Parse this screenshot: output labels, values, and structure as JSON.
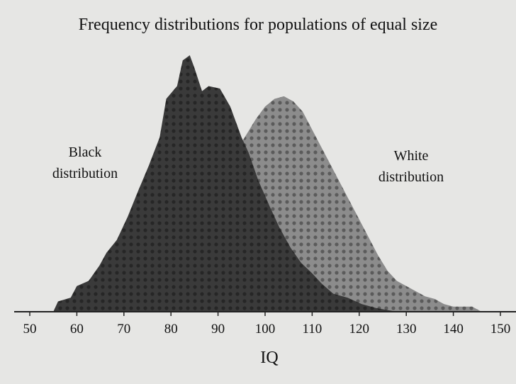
{
  "chart_data": {
    "type": "area",
    "title": "Frequency distributions for populations of equal size",
    "x_label": "IQ",
    "xlim": [
      50,
      150
    ],
    "xticks": [
      50,
      60,
      70,
      80,
      90,
      100,
      110,
      120,
      130,
      140,
      150
    ],
    "ylim": [
      0,
      100
    ],
    "series": [
      {
        "name": "White distribution",
        "color": "#8c8c8c",
        "x": [
          85,
          88,
          92,
          95,
          98,
          100,
          102,
          104,
          106,
          108,
          110,
          112,
          114,
          116,
          118,
          120,
          122,
          124,
          126,
          128,
          130,
          132,
          134,
          136,
          138,
          140,
          142,
          144,
          146
        ],
        "values": [
          0,
          25,
          55,
          66,
          75,
          80,
          83,
          84,
          82,
          78,
          71,
          64,
          57,
          50,
          43,
          36,
          29,
          22,
          16,
          12,
          10,
          8,
          6,
          5,
          3,
          2,
          2,
          2,
          0
        ]
      },
      {
        "name": "Black distribution",
        "color": "#3a3a3a",
        "x": [
          55,
          56,
          58.7,
          60,
          62.5,
          64.8,
          66.3,
          68.5,
          70.8,
          73,
          75.3,
          77.6,
          79,
          81.3,
          82.5,
          84,
          85,
          86.6,
          88,
          90.4,
          92.6,
          95,
          96.5,
          98.6,
          101,
          103,
          105.4,
          107.7,
          110,
          112,
          114.5,
          117.5,
          120.5,
          123.5,
          128
        ],
        "values": [
          0,
          4,
          5.5,
          10,
          12,
          18,
          23,
          28,
          37,
          47,
          57,
          68,
          83,
          88,
          98,
          100,
          95,
          86,
          88,
          87,
          80,
          68,
          62,
          51,
          41,
          33,
          25,
          19,
          15,
          11,
          7,
          5.5,
          3,
          1.5,
          0
        ]
      }
    ]
  }
}
